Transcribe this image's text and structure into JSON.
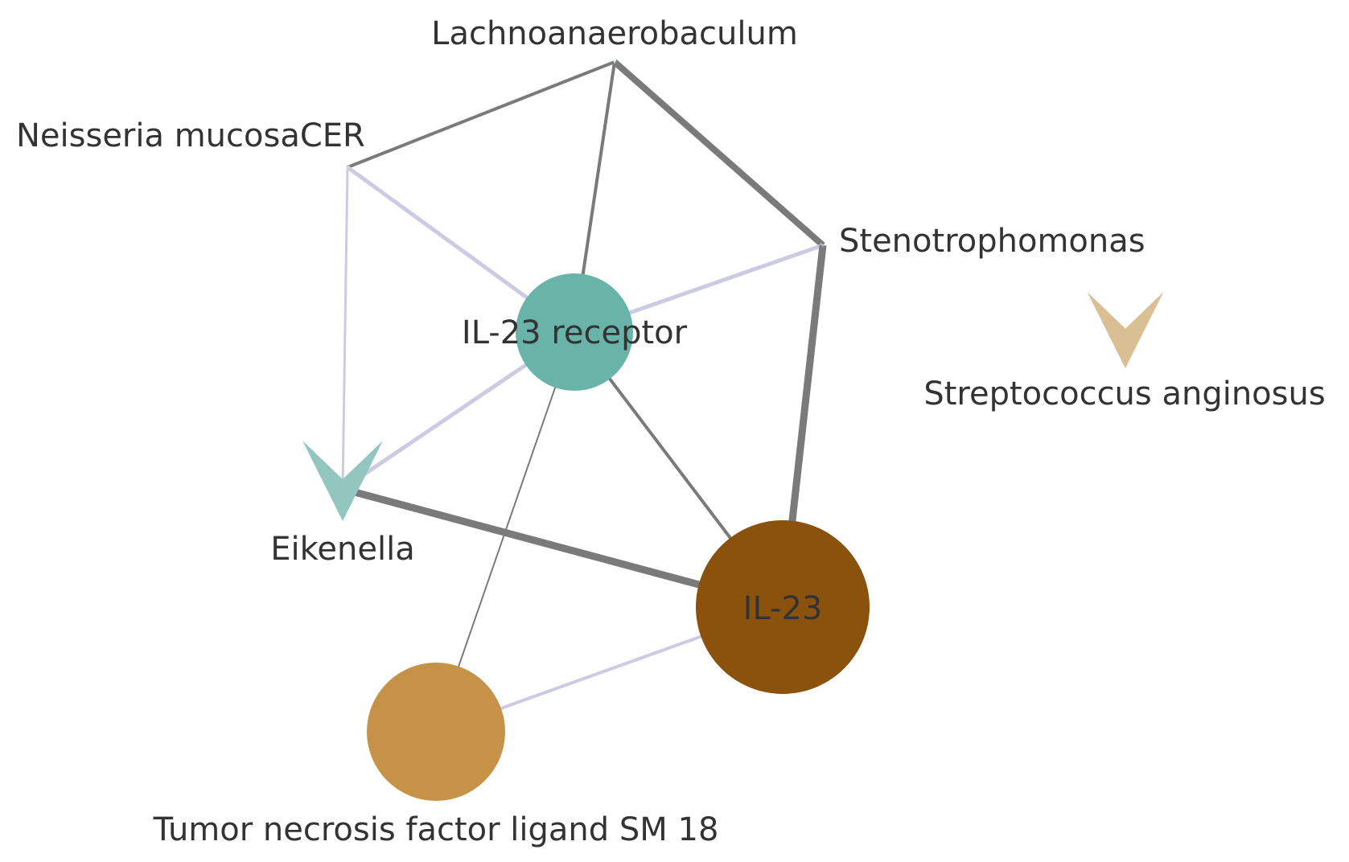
{
  "nodes": {
    "lachnoanaerobaculum": {
      "label": "Lachnoanaerobaculum",
      "shape": "arrowhead",
      "color": "#d8e8e0"
    },
    "neisseria": {
      "label": "Neisseria mucosaCER",
      "shape": "arrowhead",
      "color": "#d8e8e0"
    },
    "stenotrophomonas": {
      "label": "Stenotrophomonas",
      "shape": "arrowhead",
      "color": "#bbbbbb"
    },
    "il23_receptor": {
      "label": "IL-23 receptor",
      "shape": "circle",
      "color": "#69b3a9"
    },
    "streptococcus": {
      "label": "Streptococcus anginosus",
      "shape": "arrowhead",
      "color": "#dbbf94"
    },
    "eikenella": {
      "label": "Eikenella",
      "shape": "arrowhead",
      "color": "#92c6bf"
    },
    "il23": {
      "label": "IL-23",
      "shape": "circle",
      "color": "#8b520d"
    },
    "tnf_sm18": {
      "label": "Tumor necrosis factor ligand SM 18",
      "shape": "circle",
      "color": "#c69248"
    }
  },
  "edges": [
    {
      "from": "lachnoanaerobaculum",
      "to": "neisseria",
      "color": "#7a7a7a"
    },
    {
      "from": "lachnoanaerobaculum",
      "to": "il23_receptor",
      "color": "#7a7a7a"
    },
    {
      "from": "lachnoanaerobaculum",
      "to": "stenotrophomonas",
      "color": "#7a7a7a"
    },
    {
      "from": "neisseria",
      "to": "il23_receptor",
      "color": "#cdcbe3"
    },
    {
      "from": "neisseria",
      "to": "eikenella",
      "color": "#cdcbe3"
    },
    {
      "from": "stenotrophomonas",
      "to": "il23_receptor",
      "color": "#cdcbe3"
    },
    {
      "from": "stenotrophomonas",
      "to": "il23",
      "color": "#7a7a7a"
    },
    {
      "from": "il23_receptor",
      "to": "eikenella",
      "color": "#cdcbe3"
    },
    {
      "from": "il23_receptor",
      "to": "il23",
      "color": "#7a7a7a"
    },
    {
      "from": "il23_receptor",
      "to": "tnf_sm18",
      "color": "#7a7a7a"
    },
    {
      "from": "eikenella",
      "to": "il23",
      "color": "#7a7a7a"
    },
    {
      "from": "il23",
      "to": "tnf_sm18",
      "color": "#cdcbe3"
    }
  ]
}
